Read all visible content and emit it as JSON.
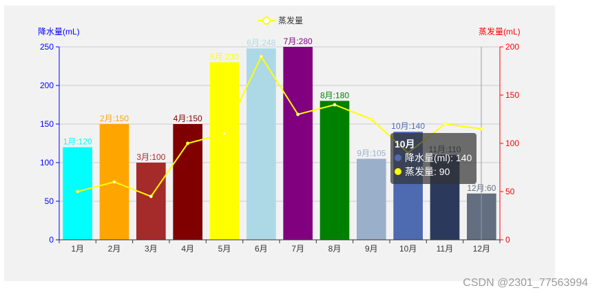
{
  "legend": {
    "label": "蒸发量",
    "color": "#ffff00"
  },
  "left_axis": {
    "name": "降水量(mL)",
    "color": "#0000ff",
    "ticks": [
      "0",
      "50",
      "100",
      "150",
      "200",
      "250"
    ]
  },
  "right_axis": {
    "name": "蒸发量(mL)",
    "color": "#ff0000",
    "ticks": [
      "0",
      "50",
      "100",
      "150",
      "200"
    ]
  },
  "x_axis": {
    "categories": [
      "1月",
      "2月",
      "3月",
      "4月",
      "5月",
      "6月",
      "7月",
      "8月",
      "9月",
      "10月",
      "11月",
      "12月"
    ]
  },
  "tooltip": {
    "title": "10月",
    "rows": [
      {
        "label": "降水量(ml): 140",
        "color": "#4e6ab0"
      },
      {
        "label": "蒸发量: 90",
        "color": "#ffff00"
      }
    ]
  },
  "watermark": "CSDN @2301_77563994",
  "chart_data": {
    "type": "bar",
    "title": "",
    "categories": [
      "1月",
      "2月",
      "3月",
      "4月",
      "5月",
      "6月",
      "7月",
      "8月",
      "9月",
      "10月",
      "11月",
      "12月"
    ],
    "series": [
      {
        "name": "降水量",
        "type": "bar",
        "axis": "left",
        "values": [
          120,
          150,
          100,
          150,
          230,
          248,
          280,
          180,
          105,
          140,
          110,
          60
        ],
        "colors": [
          "#00ffff",
          "#ffa500",
          "#a52a2a",
          "#800000",
          "#ffff00",
          "#add8e6",
          "#800080",
          "#008000",
          "#9aafc9",
          "#4e6ab0",
          "#2b3a5c",
          "#636e80"
        ],
        "labels": [
          "1月:120",
          "2月:150",
          "3月:100",
          "4月:150",
          "5月:230",
          "6月:248",
          "7月:280",
          "8月:180",
          "9月:105",
          "10月:140",
          "11月:110",
          "12月:60"
        ]
      },
      {
        "name": "蒸发量",
        "type": "line",
        "axis": "right",
        "color": "#ffff00",
        "values": [
          50,
          60,
          45,
          100,
          110,
          190,
          130,
          140,
          125,
          90,
          120,
          115
        ]
      }
    ],
    "xlabel": "",
    "ylabel": "降水量(mL)",
    "ylabel_right": "蒸发量(mL)",
    "ylim": [
      0,
      250
    ],
    "ylim_right": [
      0,
      200
    ],
    "grid": true,
    "legend_position": "top-center"
  }
}
